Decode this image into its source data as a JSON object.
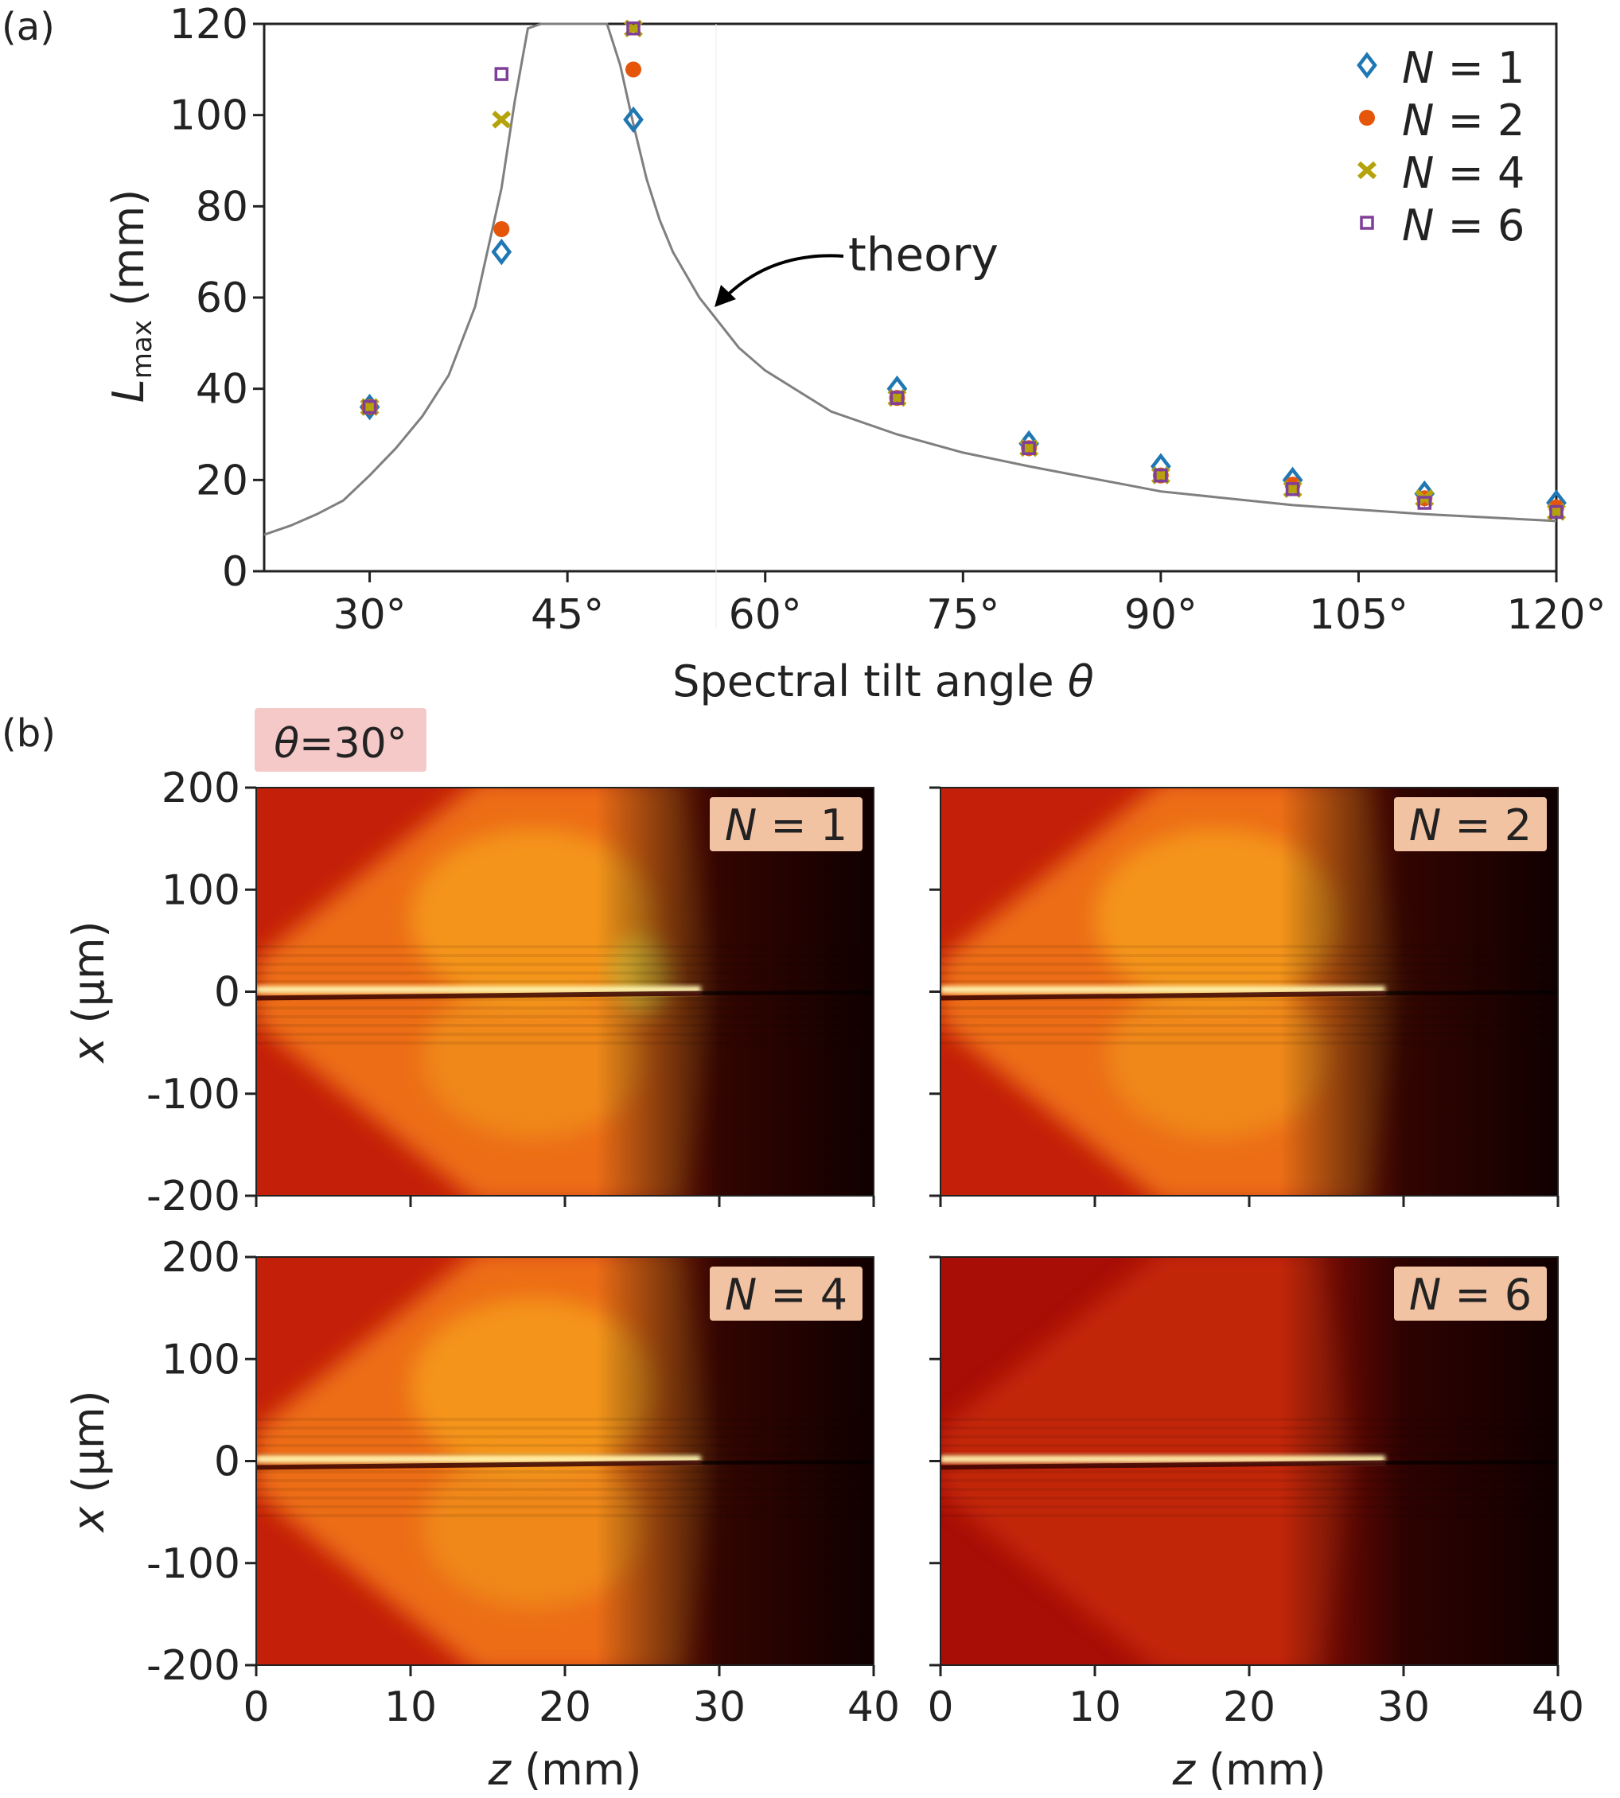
{
  "figure": {
    "panel_a_label": "(a)",
    "panel_b_label": "(b)",
    "annotation_theory": "theory",
    "theta_badge": {
      "prefix": "θ",
      "text": "=30°"
    }
  },
  "colors": {
    "series_n1": "#1f77b4",
    "series_n2": "#e5560b",
    "series_n4": "#b5a30c",
    "series_n6": "#7e3f98",
    "theory": "#7f7f7f",
    "badge_bg": "#f6c9c9",
    "label_bg": "#f2c3a3"
  },
  "chart_data": [
    {
      "type": "scatter",
      "title": "",
      "xlabel": {
        "text": "Spectral tilt angle ",
        "var": "θ"
      },
      "ylabel": {
        "var": "L",
        "sub": "max",
        "unit": " (mm)"
      },
      "xlim": [
        22,
        120
      ],
      "ylim": [
        0,
        120
      ],
      "xticks": [
        30,
        45,
        60,
        75,
        90,
        105,
        120
      ],
      "xtick_labels": [
        "30°",
        "45°",
        "60°",
        "75°",
        "90°",
        "105°",
        "120°"
      ],
      "yticks": [
        0,
        20,
        40,
        60,
        80,
        100,
        120
      ],
      "ytick_labels": [
        "0",
        "20",
        "40",
        "60",
        "80",
        "100",
        "120"
      ],
      "legend_position": "top-right",
      "series": [
        {
          "name": "N = 1",
          "var": "N",
          "eq": " = 1",
          "marker": "diamond",
          "x": [
            30,
            40,
            50,
            70,
            80,
            90,
            100,
            110,
            120
          ],
          "y": [
            36,
            70,
            99,
            40,
            28,
            23,
            20,
            17,
            15
          ]
        },
        {
          "name": "N = 2",
          "var": "N",
          "eq": " = 2",
          "marker": "circle",
          "x": [
            30,
            40,
            50,
            70,
            80,
            90,
            100,
            110,
            120
          ],
          "y": [
            36,
            75,
            110,
            38,
            27,
            21,
            19,
            16,
            14
          ]
        },
        {
          "name": "N = 4",
          "var": "N",
          "eq": " = 4",
          "marker": "x",
          "x": [
            30,
            40,
            50,
            70,
            80,
            90,
            100,
            110,
            120
          ],
          "y": [
            36,
            99,
            119,
            38,
            27,
            21,
            18,
            16,
            13
          ]
        },
        {
          "name": "N = 6",
          "var": "N",
          "eq": " = 6",
          "marker": "square",
          "x": [
            30,
            40,
            50,
            70,
            80,
            90,
            100,
            110,
            120
          ],
          "y": [
            36,
            109,
            119,
            38,
            27,
            21,
            18,
            15,
            13
          ]
        }
      ],
      "theory_curve": {
        "x": [
          22,
          24,
          26,
          28,
          30,
          32,
          34,
          36,
          38,
          40,
          41,
          42,
          43,
          44,
          47,
          48,
          49,
          50,
          51,
          52,
          53,
          55,
          58,
          60,
          65,
          70,
          75,
          80,
          90,
          100,
          110,
          120
        ],
        "y": [
          8,
          10,
          12.5,
          15.5,
          21,
          27,
          34,
          43,
          58,
          84,
          103,
          119,
          120,
          120,
          120,
          120,
          111,
          98,
          86,
          77,
          70,
          60,
          49,
          44,
          35,
          30,
          26,
          23,
          17.5,
          14.5,
          12.5,
          11
        ]
      }
    },
    {
      "type": "heatmap",
      "subplot_labels": [
        {
          "var": "N",
          "eq": " = 1"
        },
        {
          "var": "N",
          "eq": " = 2"
        },
        {
          "var": "N",
          "eq": " = 4"
        },
        {
          "var": "N",
          "eq": " = 6"
        }
      ],
      "xlabel": {
        "var": "z",
        "unit": " (mm)"
      },
      "ylabel": {
        "var": "x",
        "unit": " (μm)"
      },
      "xlim": [
        0,
        40
      ],
      "ylim": [
        -200,
        200
      ],
      "xticks": [
        0,
        10,
        20,
        30,
        40
      ],
      "xtick_labels": [
        "0",
        "10",
        "20",
        "30",
        "40"
      ],
      "yticks": [
        200,
        100,
        0,
        -100,
        -200
      ],
      "ytick_labels": [
        "200",
        "100",
        "0",
        "-100",
        "-200"
      ],
      "colormap": "hot"
    }
  ]
}
